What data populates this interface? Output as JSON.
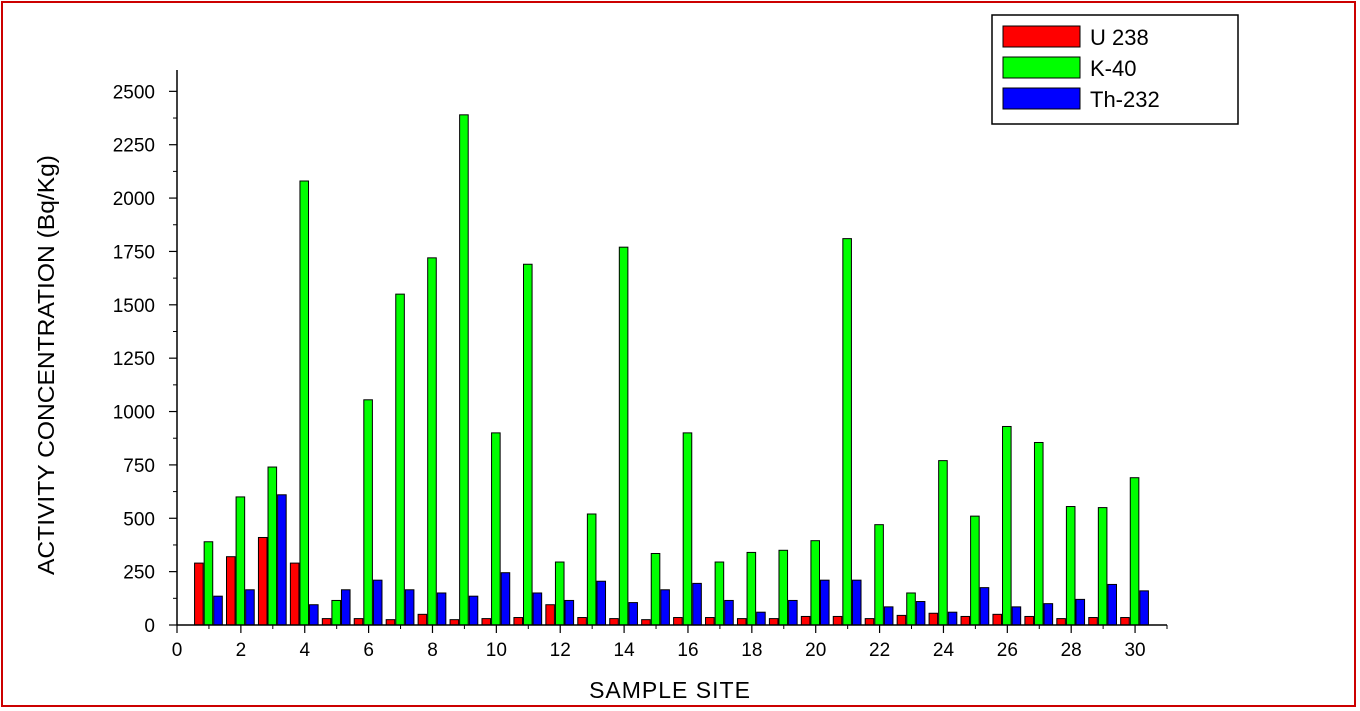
{
  "chart_data": {
    "type": "bar",
    "title": "",
    "xlabel": "SAMPLE SITE",
    "ylabel": "ACTIVITY CONCENTRATION (Bq/Kg)",
    "xlim": [
      0,
      31
    ],
    "ylim": [
      0,
      2600
    ],
    "x_ticks": [
      "0",
      "2",
      "4",
      "6",
      "8",
      "10",
      "12",
      "14",
      "16",
      "18",
      "20",
      "22",
      "24",
      "26",
      "28",
      "30"
    ],
    "y_ticks": [
      "0",
      "250",
      "500",
      "750",
      "1000",
      "1250",
      "1500",
      "1750",
      "2000",
      "2250",
      "2500"
    ],
    "legend_position": "top-right",
    "categories": [
      1,
      2,
      3,
      4,
      5,
      6,
      7,
      8,
      9,
      10,
      11,
      12,
      13,
      14,
      15,
      16,
      17,
      18,
      19,
      20,
      21,
      22,
      23,
      24,
      25,
      26,
      27,
      28,
      29,
      30
    ],
    "series": [
      {
        "name": "U 238",
        "color": "#ff0000",
        "values": [
          290,
          320,
          410,
          290,
          30,
          30,
          25,
          50,
          25,
          30,
          35,
          95,
          35,
          30,
          25,
          35,
          35,
          30,
          30,
          40,
          40,
          30,
          45,
          55,
          40,
          50,
          40,
          30,
          35,
          35
        ]
      },
      {
        "name": "K-40",
        "color": "#00ff00",
        "values": [
          390,
          600,
          740,
          2080,
          115,
          1055,
          1550,
          1720,
          2390,
          900,
          1690,
          295,
          520,
          1770,
          335,
          900,
          295,
          340,
          350,
          395,
          1810,
          470,
          150,
          770,
          510,
          930,
          855,
          555,
          550,
          690
        ]
      },
      {
        "name": "Th-232",
        "color": "#0000ff",
        "values": [
          135,
          165,
          610,
          95,
          165,
          210,
          165,
          150,
          135,
          245,
          150,
          115,
          205,
          105,
          165,
          195,
          115,
          60,
          115,
          210,
          210,
          85,
          110,
          60,
          175,
          85,
          100,
          120,
          190,
          160
        ]
      }
    ]
  }
}
